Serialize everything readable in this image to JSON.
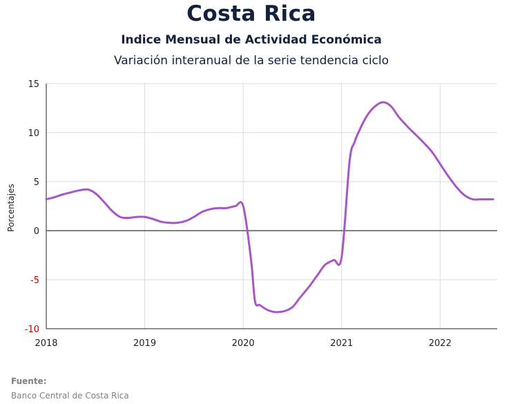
{
  "chart_data": {
    "type": "line",
    "title": "Costa Rica",
    "subtitle": "Indice Mensual de  Actividad Económica",
    "subtitle2": "Variación interanual de la serie tendencia ciclo",
    "xlabel": "",
    "ylabel": "Porcentajes",
    "ylim": [
      -10,
      15
    ],
    "yticks": [
      "15",
      "10",
      "5",
      "0",
      "-5",
      "-10"
    ],
    "xlim": [
      2018,
      2022.58
    ],
    "xticks": [
      "2018",
      "2019",
      "2020",
      "2021",
      "2022"
    ],
    "grid": true,
    "series": [
      {
        "color": "#a855c8",
        "x": [
          2018.0,
          2018.08,
          2018.17,
          2018.25,
          2018.33,
          2018.42,
          2018.5,
          2018.58,
          2018.67,
          2018.75,
          2018.83,
          2018.92,
          2019.0,
          2019.08,
          2019.17,
          2019.25,
          2019.33,
          2019.42,
          2019.5,
          2019.58,
          2019.67,
          2019.75,
          2019.83,
          2019.92,
          2020.0,
          2020.08,
          2020.12,
          2020.17,
          2020.25,
          2020.33,
          2020.42,
          2020.5,
          2020.58,
          2020.67,
          2020.75,
          2020.83,
          2020.92,
          2021.0,
          2021.08,
          2021.13,
          2021.17,
          2021.25,
          2021.33,
          2021.42,
          2021.5,
          2021.58,
          2021.67,
          2021.75,
          2021.83,
          2021.92,
          2022.0,
          2022.08,
          2022.17,
          2022.25,
          2022.33,
          2022.42,
          2022.5,
          2022.54
        ],
        "values": [
          3.2,
          3.4,
          3.7,
          3.9,
          4.1,
          4.2,
          3.8,
          3.0,
          2.0,
          1.4,
          1.3,
          1.4,
          1.4,
          1.2,
          0.9,
          0.8,
          0.8,
          1.0,
          1.4,
          1.9,
          2.2,
          2.3,
          2.3,
          2.5,
          2.5,
          -3.0,
          -7.2,
          -7.6,
          -8.1,
          -8.3,
          -8.2,
          -7.8,
          -6.8,
          -5.7,
          -4.6,
          -3.5,
          -3.0,
          -2.7,
          7.0,
          9.0,
          10.0,
          11.6,
          12.6,
          13.1,
          12.7,
          11.6,
          10.6,
          9.8,
          9.0,
          8.0,
          6.8,
          5.6,
          4.4,
          3.6,
          3.2,
          3.2,
          3.2,
          3.2
        ]
      }
    ]
  },
  "source": {
    "label": "Fuente:",
    "text": "Banco Central de Costa Rica"
  }
}
